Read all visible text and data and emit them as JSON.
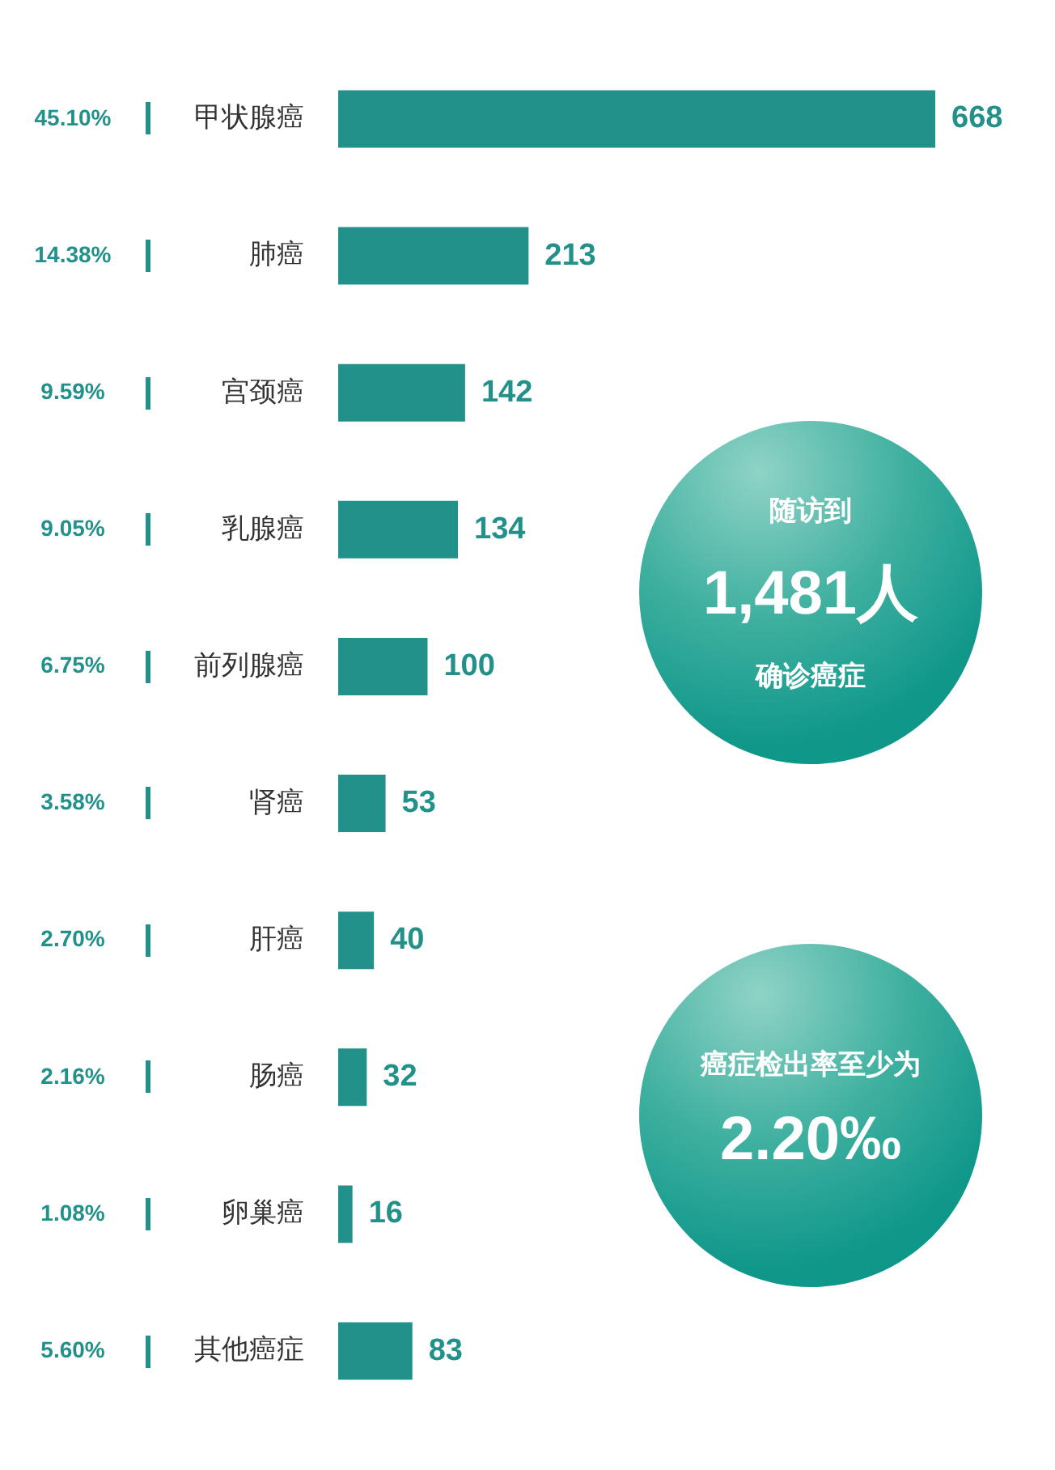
{
  "chart_data": {
    "type": "bar",
    "orientation": "horizontal",
    "categories": [
      "甲状腺癌",
      "肺癌",
      "宫颈癌",
      "乳腺癌",
      "前列腺癌",
      "肾癌",
      "肝癌",
      "肠癌",
      "卵巢癌",
      "其他癌症"
    ],
    "values": [
      668,
      213,
      142,
      134,
      100,
      53,
      40,
      32,
      16,
      83
    ],
    "color": "#21918a",
    "data_labels": true,
    "grid": false,
    "legend": false,
    "annotations": [
      "45.10%",
      "14.38%",
      "9.59%",
      "9.05%",
      "6.75%",
      "3.58%",
      "2.70%",
      "2.16%",
      "1.08%",
      "5.60%",
      "随访到",
      "1,481人",
      "确诊癌症",
      "癌症检出率至少为",
      "2.20‰"
    ]
  }
}
